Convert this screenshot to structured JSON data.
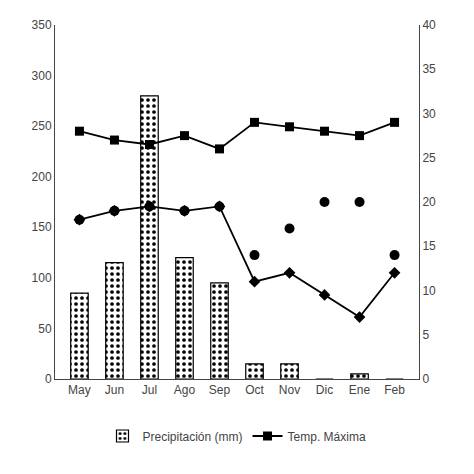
{
  "chart_data": {
    "type": "bar",
    "categories": [
      "May",
      "Jun",
      "Jul",
      "Ago",
      "Sep",
      "Oct",
      "Nov",
      "Dic",
      "Ene",
      "Feb"
    ],
    "series": [
      {
        "name": "Precipitación (mm)",
        "type": "bar",
        "color": "#ffffff",
        "values": [
          85,
          115,
          280,
          120,
          95,
          15,
          15,
          0,
          5,
          0
        ]
      },
      {
        "name": "Temp. Máxima",
        "type": "line",
        "axis": "y2",
        "color": "#000000",
        "marker": "square",
        "values": [
          28,
          27,
          26.5,
          27.5,
          26,
          29,
          28.5,
          28,
          27.5,
          29
        ]
      },
      {
        "type": "line",
        "axis": "y2",
        "color": "#000000",
        "marker": "diamond",
        "values": [
          18,
          19,
          19.5,
          19,
          19.5,
          11,
          12,
          9.5,
          7,
          12
        ]
      },
      {
        "type": "scatter",
        "axis": "y2",
        "color": "#000000",
        "marker": "circle",
        "values": [
          18,
          19,
          19.5,
          19,
          19.5,
          14,
          17,
          20,
          20,
          14
        ]
      }
    ],
    "ylim": [
      0,
      350
    ],
    "yticks": [
      0,
      50,
      100,
      150,
      200,
      250,
      300,
      350
    ],
    "y2lim": [
      0,
      40
    ],
    "y2ticks": [
      0,
      5,
      10,
      15,
      20,
      25,
      30,
      35,
      40
    ],
    "grid": false,
    "legend": "bottom"
  }
}
